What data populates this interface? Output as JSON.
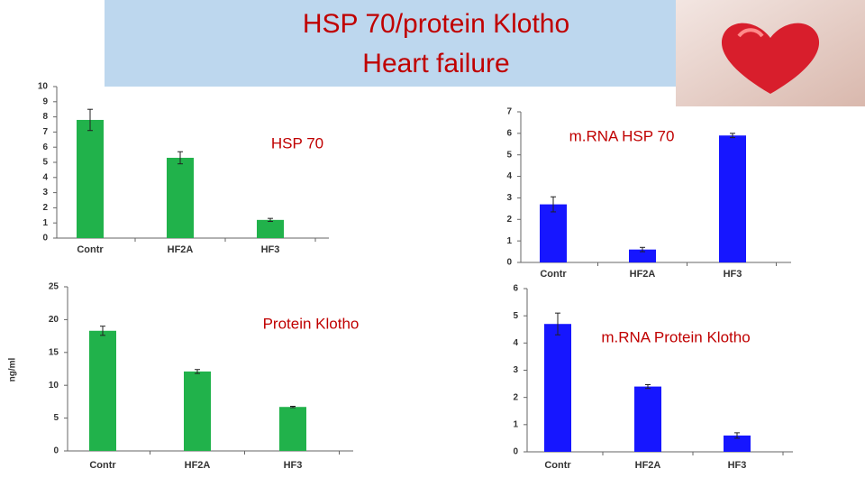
{
  "slide": {
    "title": [
      "HSP 70/protein Klotho",
      "Heart failure"
    ]
  },
  "chart_data": [
    {
      "type": "bar",
      "title": "HSP 70",
      "categories": [
        "Contr",
        "HF2A",
        "HF3"
      ],
      "values": [
        7.8,
        5.3,
        1.2
      ],
      "errors": [
        0.7,
        0.4,
        0.1
      ],
      "color": "#21b24b",
      "ylim": [
        0,
        10
      ],
      "yticks": [
        0,
        1,
        2,
        3,
        4,
        5,
        6,
        7,
        8,
        9,
        10
      ]
    },
    {
      "type": "bar",
      "title": "m.RNA HSP 70",
      "categories": [
        "Contr",
        "HF2A",
        "HF3"
      ],
      "values": [
        2.7,
        0.6,
        5.9
      ],
      "errors": [
        0.35,
        0.1,
        0.1
      ],
      "color": "#1616ff",
      "ylim": [
        0,
        7
      ],
      "yticks": [
        0,
        1,
        2,
        3,
        4,
        5,
        6,
        7
      ]
    },
    {
      "type": "bar",
      "title": "Protein Klotho",
      "y_label": "ng/ml",
      "categories": [
        "Contr",
        "HF2A",
        "HF3"
      ],
      "values": [
        18.3,
        12.1,
        6.7
      ],
      "errors": [
        0.7,
        0.3,
        0.1
      ],
      "color": "#21b24b",
      "ylim": [
        0,
        25
      ],
      "yticks": [
        0,
        5,
        10,
        15,
        20,
        25
      ]
    },
    {
      "type": "bar",
      "title": "m.RNA Protein Klotho",
      "categories": [
        "Contr",
        "HF2A",
        "HF3"
      ],
      "values": [
        4.7,
        2.4,
        0.6
      ],
      "errors": [
        0.4,
        0.07,
        0.1
      ],
      "color": "#1616ff",
      "ylim": [
        0,
        6
      ],
      "yticks": [
        0,
        1,
        2,
        3,
        4,
        5,
        6
      ]
    }
  ]
}
